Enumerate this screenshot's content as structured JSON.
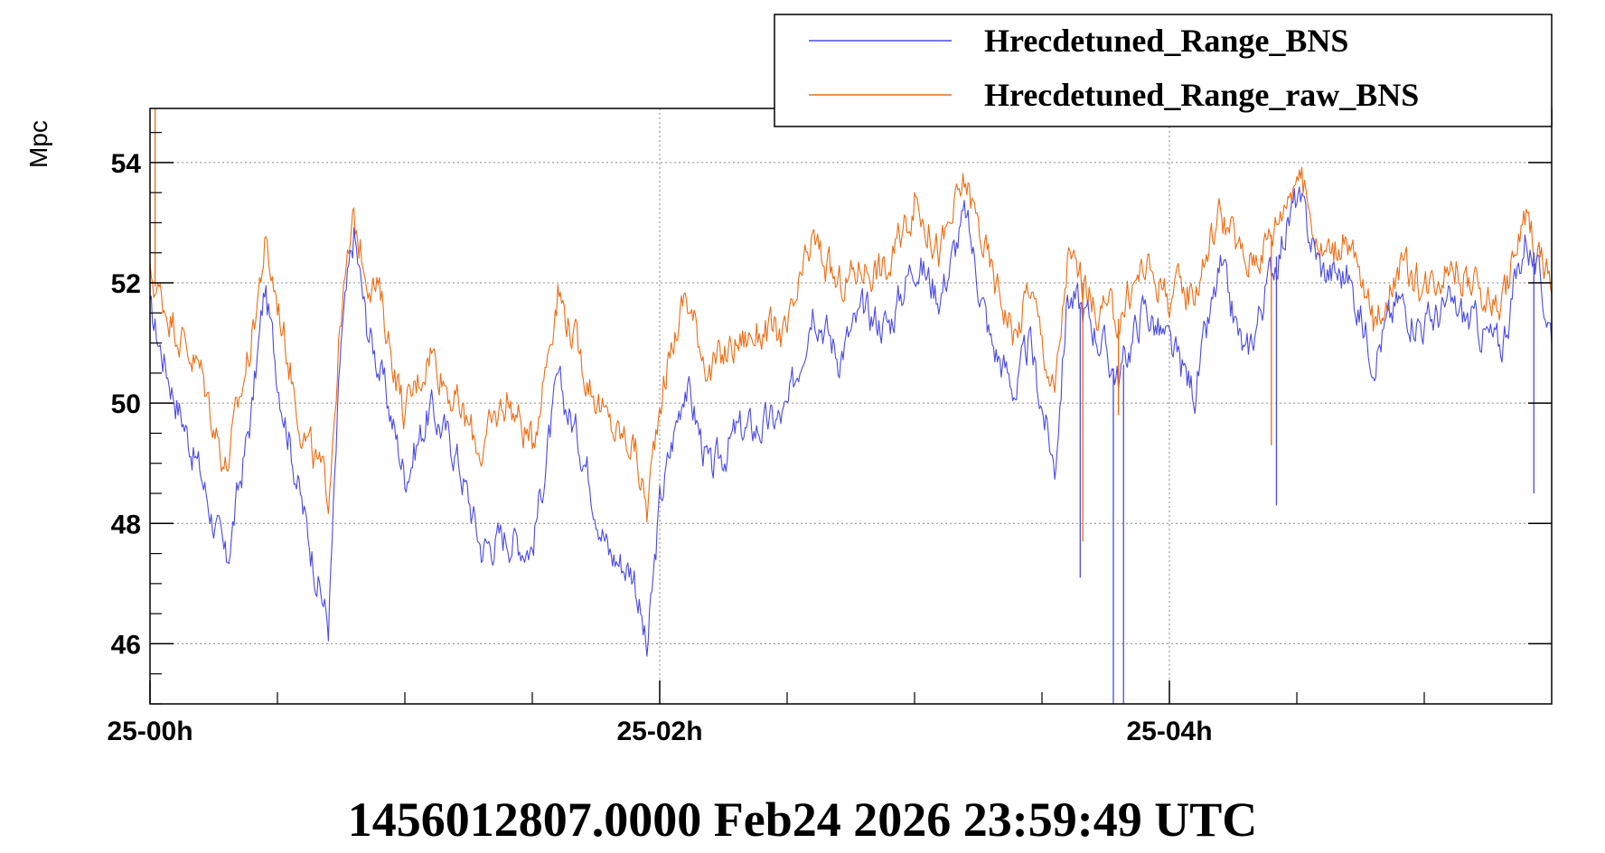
{
  "chart_data": {
    "type": "line",
    "title": "",
    "xlabel": "",
    "ylabel": "Mpc",
    "x_unit": "hours",
    "xlim": [
      0,
      5.5
    ],
    "ylim": [
      45,
      54.9
    ],
    "x_ticks": [
      {
        "value": 0,
        "label": "25-00h"
      },
      {
        "value": 2,
        "label": "25-02h"
      },
      {
        "value": 4,
        "label": "25-04h"
      }
    ],
    "y_ticks": [
      46,
      48,
      50,
      52,
      54
    ],
    "grid": true,
    "legend_position": "top-right",
    "footer": "1456012807.0000 Feb24 2026 23:59:49 UTC",
    "x": [
      0,
      0.1,
      0.2,
      0.3,
      0.4,
      0.45,
      0.5,
      0.6,
      0.7,
      0.75,
      0.8,
      0.85,
      0.9,
      1.0,
      1.1,
      1.2,
      1.3,
      1.4,
      1.5,
      1.6,
      1.7,
      1.8,
      1.9,
      1.95,
      2.0,
      2.1,
      2.2,
      2.3,
      2.4,
      2.5,
      2.6,
      2.7,
      2.8,
      2.9,
      3.0,
      3.1,
      3.2,
      3.3,
      3.4,
      3.45,
      3.55,
      3.6,
      3.65,
      3.7,
      3.8,
      3.9,
      4.0,
      4.1,
      4.2,
      4.3,
      4.4,
      4.5,
      4.6,
      4.7,
      4.8,
      4.9,
      5.0,
      5.1,
      5.2,
      5.3,
      5.4,
      5.5
    ],
    "series": [
      {
        "name": "Hrecdetuned_Range_BNS",
        "color": "#4a4ae8",
        "values": [
          51.5,
          50.1,
          48.8,
          47.3,
          49.9,
          51.9,
          50.5,
          48.2,
          46.3,
          51.0,
          52.8,
          51.3,
          50.6,
          48.8,
          49.9,
          49.2,
          47.6,
          47.8,
          47.6,
          50.3,
          49.2,
          47.5,
          47.2,
          45.8,
          48.3,
          50.4,
          48.8,
          49.5,
          49.6,
          49.8,
          51.7,
          50.8,
          51.5,
          51.3,
          52.4,
          51.8,
          53.1,
          51.0,
          50.2,
          51.0,
          48.9,
          51.8,
          51.6,
          51.3,
          50.4,
          51.6,
          50.9,
          50.2,
          52.2,
          50.7,
          52.2,
          53.4,
          52.2,
          52.1,
          50.8,
          51.7,
          51.3,
          51.6,
          51.3,
          50.9,
          52.8,
          51.2
        ]
      },
      {
        "name": "Hrecdetuned_Range_raw_BNS",
        "color": "#ef6c12",
        "values": [
          52.1,
          51.3,
          50.5,
          48.9,
          51.1,
          52.6,
          51.7,
          49.5,
          48.5,
          51.5,
          53.0,
          52.2,
          51.8,
          49.8,
          50.9,
          50.0,
          49.2,
          50.1,
          49.3,
          51.9,
          50.6,
          49.6,
          49.3,
          48.2,
          50.1,
          51.8,
          50.5,
          51.0,
          51.2,
          51.1,
          52.7,
          51.9,
          52.3,
          52.2,
          53.4,
          52.5,
          53.7,
          52.2,
          51.1,
          52.0,
          50.1,
          52.4,
          52.1,
          51.6,
          51.4,
          52.3,
          51.8,
          51.9,
          53.2,
          52.3,
          52.8,
          53.9,
          52.5,
          52.7,
          51.3,
          52.3,
          51.9,
          52.4,
          51.9,
          51.6,
          53.1,
          51.9
        ]
      }
    ],
    "spikes": [
      {
        "series": 1,
        "x": 0.02,
        "y": 54.9
      },
      {
        "series": 0,
        "x": 3.65,
        "y": 47.1
      },
      {
        "series": 1,
        "x": 3.66,
        "y": 47.7
      },
      {
        "series": 0,
        "x": 3.78,
        "y": 45.0
      },
      {
        "series": 0,
        "x": 3.82,
        "y": 45.0
      },
      {
        "series": 1,
        "x": 3.8,
        "y": 49.8
      },
      {
        "series": 0,
        "x": 4.42,
        "y": 48.3
      },
      {
        "series": 1,
        "x": 4.4,
        "y": 49.3
      },
      {
        "series": 0,
        "x": 5.43,
        "y": 48.5
      }
    ]
  }
}
